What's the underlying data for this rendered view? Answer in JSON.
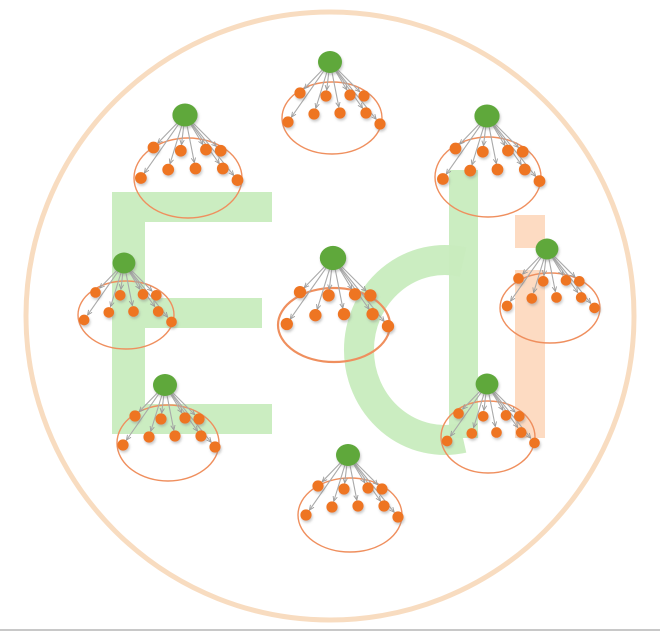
{
  "logo": {
    "text_main": "Ed",
    "text_accent": "i",
    "color_main": "#c8ecbe",
    "color_accent": "#fdd9bf"
  },
  "colors": {
    "outer_circle": "#f8dcc0",
    "cluster_ellipse": "#ef8f5e",
    "parent_node": "#5ea83a",
    "child_node": "#ee7422",
    "arrow": "#a9a9a9",
    "shadow": "#c9c9c9"
  },
  "clusters": [
    {
      "id": "top"
    },
    {
      "id": "upper-left"
    },
    {
      "id": "upper-right"
    },
    {
      "id": "middle-left"
    },
    {
      "id": "center"
    },
    {
      "id": "middle-right"
    },
    {
      "id": "lower-left"
    },
    {
      "id": "lower-right"
    },
    {
      "id": "bottom"
    }
  ]
}
